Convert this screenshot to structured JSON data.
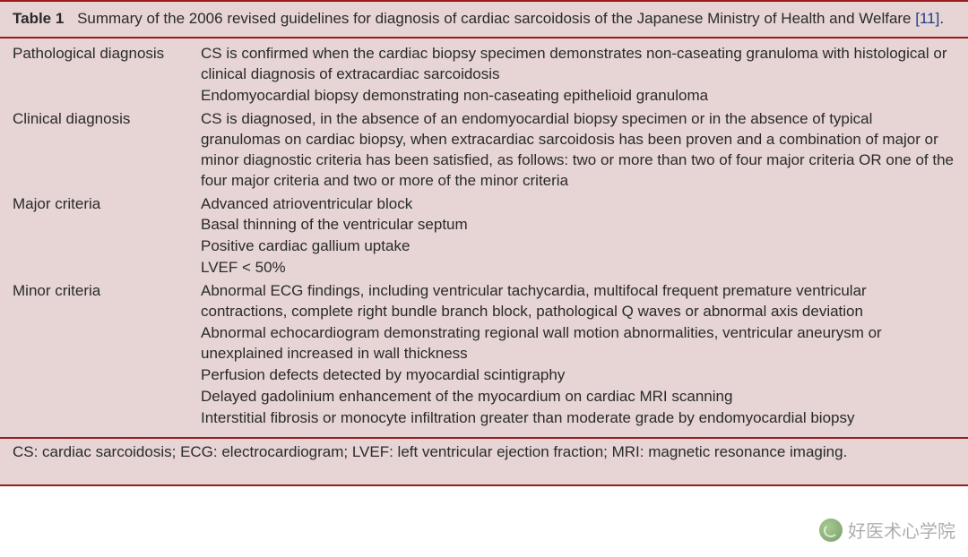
{
  "colors": {
    "rule": "#9a1b1b",
    "bg_tint": "#e6d5d4",
    "text": "#2a2a2a",
    "ref": "#1a3f8c"
  },
  "typography": {
    "family": "Trebuchet MS / Lucida Sans",
    "size_pt": 13,
    "line_height": 1.35
  },
  "caption": {
    "label": "Table 1",
    "text_before_ref": "Summary of the 2006 revised guidelines for diagnosis of cardiac sarcoidosis of the Japanese Ministry of Health and Welfare ",
    "ref": "[11]",
    "text_after_ref": "."
  },
  "rows": [
    {
      "label": "Pathological diagnosis",
      "items": [
        "CS is confirmed when the cardiac biopsy specimen demonstrates non-caseating granuloma with histological or clinical diagnosis of extracardiac sarcoidosis",
        "Endomyocardial biopsy demonstrating non-caseating epithelioid granuloma"
      ]
    },
    {
      "label": "Clinical diagnosis",
      "items": [
        "CS is diagnosed, in the absence of an endomyocardial biopsy specimen or in the absence of typical granulomas on cardiac biopsy, when extracardiac sarcoidosis has been proven and a combination of major or minor diagnostic criteria has been satisfied, as follows: two or more than two of four major criteria OR one of the four major criteria and two or more of the minor criteria"
      ]
    },
    {
      "label": "Major criteria",
      "items": [
        "Advanced atrioventricular block",
        "Basal thinning of the ventricular septum",
        "Positive cardiac gallium uptake",
        "LVEF < 50%"
      ]
    },
    {
      "label": "Minor criteria",
      "items": [
        "Abnormal ECG findings, including ventricular tachycardia, multifocal frequent premature ventricular contractions, complete right bundle branch block, pathological Q waves or abnormal axis deviation",
        "Abnormal echocardiogram demonstrating regional wall motion abnormalities, ventricular aneurysm or unexplained increased in wall thickness",
        "Perfusion defects detected by myocardial scintigraphy",
        "Delayed gadolinium enhancement of the myocardium on cardiac MRI scanning",
        "Interstitial fibrosis or monocyte infiltration greater than moderate grade by endomyocardial biopsy"
      ]
    }
  ],
  "footnote": "CS: cardiac sarcoidosis; ECG: electrocardiogram; LVEF: left ventricular ejection fraction; MRI: magnetic resonance imaging.",
  "watermark": "好医术心学院"
}
